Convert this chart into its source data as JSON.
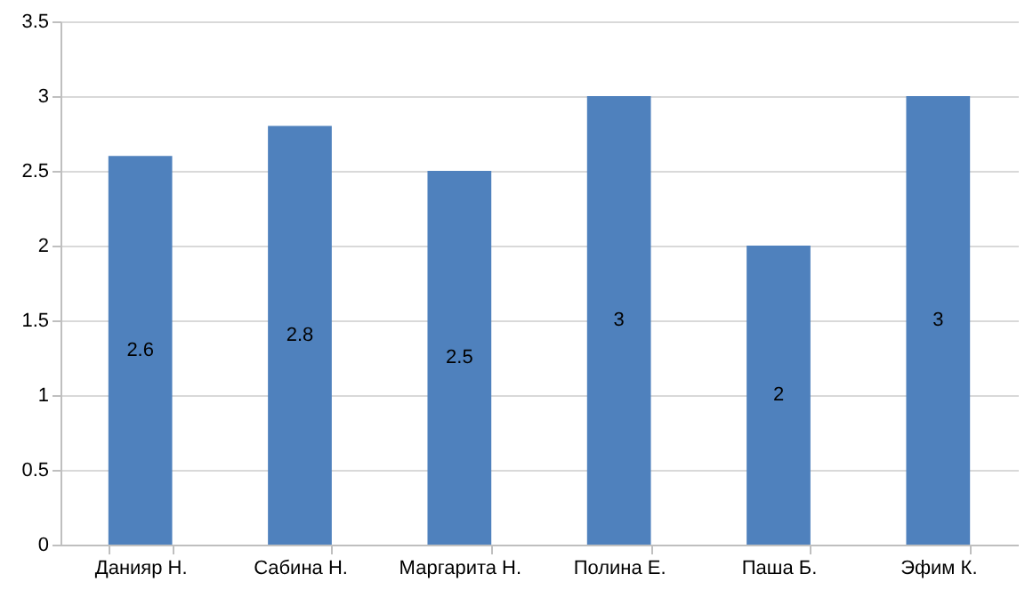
{
  "chart_data": {
    "type": "bar",
    "categories": [
      "Данияр Н.",
      "Сабина Н.",
      "Маргарита Н.",
      "Полина Е.",
      "Паша Б.",
      "Эфим К."
    ],
    "values": [
      2.6,
      2.8,
      2.5,
      3,
      2,
      3
    ],
    "color": "#4f81bd",
    "ylim": [
      0,
      3.5
    ],
    "yticks": [
      0,
      0.5,
      1,
      1.5,
      2,
      2.5,
      3,
      3.5
    ],
    "grid": "y",
    "data_labels": true
  }
}
